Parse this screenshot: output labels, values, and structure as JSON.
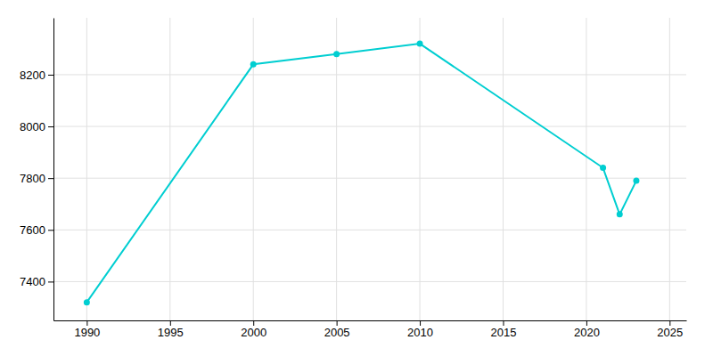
{
  "chart_data": {
    "type": "line",
    "x": [
      1990,
      2000,
      2005,
      2010,
      2021,
      2022,
      2023
    ],
    "values": [
      7320,
      8240,
      8280,
      8320,
      7840,
      7660,
      7790
    ],
    "color": "#00CED1",
    "marker": "circle",
    "xlim": [
      1988,
      2026
    ],
    "ylim": [
      7250,
      8420
    ],
    "xticks": [
      1990,
      1995,
      2000,
      2005,
      2010,
      2015,
      2020,
      2025
    ],
    "yticks": [
      7400,
      7600,
      7800,
      8000,
      8200
    ],
    "grid": true
  }
}
